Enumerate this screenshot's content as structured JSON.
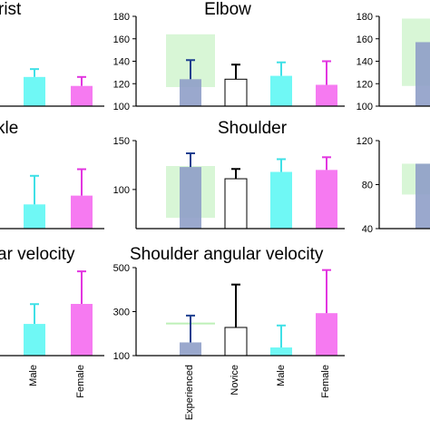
{
  "chart_data": [
    {
      "id": "wrist",
      "type": "bar",
      "title": "rist",
      "ylim": [
        100,
        180
      ],
      "yticks": [],
      "categories": [
        "Experienced",
        "Novice",
        "Male",
        "Female"
      ],
      "band": null,
      "bars": [
        {
          "category": "Male",
          "value": 126,
          "error": 7,
          "color": "#5ff7f4"
        },
        {
          "category": "Female",
          "value": 118,
          "error": 8,
          "color": "#f56cf0"
        }
      ]
    },
    {
      "id": "elbow",
      "type": "bar",
      "title": "Elbow",
      "ylim": [
        100,
        180
      ],
      "yticks": [
        "100",
        "120",
        "140",
        "160",
        "180"
      ],
      "categories": [
        "Experienced",
        "Novice",
        "Male",
        "Female"
      ],
      "band": {
        "from": 117,
        "to": 164,
        "color": "#d8f6d6"
      },
      "bars": [
        {
          "category": "Experienced",
          "value": 124,
          "error": 17,
          "color": "#8f9ec8"
        },
        {
          "category": "Novice",
          "value": 124,
          "error": 13,
          "color": "#ffffff"
        },
        {
          "category": "Male",
          "value": 127,
          "error": 12,
          "color": "#5ff7f4"
        },
        {
          "category": "Female",
          "value": 119,
          "error": 21,
          "color": "#f56cf0"
        }
      ]
    },
    {
      "id": "right-top",
      "type": "bar",
      "title": "",
      "ylim": [
        100,
        180
      ],
      "yticks": [
        "100",
        "120",
        "140",
        "160",
        "180"
      ],
      "categories": [
        "Experienced",
        "Novice",
        "Male",
        "Female"
      ],
      "band": {
        "from": 118,
        "to": 178,
        "color": "#d8f6d6"
      },
      "bars": [
        {
          "category": "Experienced",
          "value": 157,
          "error": 0,
          "color": "#8f9ec8"
        }
      ]
    },
    {
      "id": "ankle",
      "type": "bar",
      "title": "kle",
      "ylim": [
        60,
        140
      ],
      "yticks": [],
      "categories": [
        "Experienced",
        "Novice",
        "Male",
        "Female"
      ],
      "band": null,
      "bars": [
        {
          "category": "Male",
          "value": 82,
          "error": 26,
          "color": "#5ff7f4"
        },
        {
          "category": "Female",
          "value": 90,
          "error": 24,
          "color": "#f56cf0"
        }
      ]
    },
    {
      "id": "shoulder",
      "type": "bar",
      "title": "Shoulder",
      "ylim": [
        60,
        150
      ],
      "yticks": [
        "100",
        "150"
      ],
      "categories": [
        "Experienced",
        "Novice",
        "Male",
        "Female"
      ],
      "band": {
        "from": 71,
        "to": 124,
        "color": "#d8f6d6"
      },
      "bars": [
        {
          "category": "Experienced",
          "value": 123,
          "error": 14,
          "color": "#8f9ec8"
        },
        {
          "category": "Novice",
          "value": 111,
          "error": 10,
          "color": "#ffffff"
        },
        {
          "category": "Male",
          "value": 118,
          "error": 13,
          "color": "#5ff7f4"
        },
        {
          "category": "Female",
          "value": 120,
          "error": 13,
          "color": "#f56cf0"
        }
      ]
    },
    {
      "id": "right-mid",
      "type": "bar",
      "title": "",
      "ylim": [
        40,
        120
      ],
      "yticks": [
        "40",
        "80",
        "120"
      ],
      "categories": [
        "Experienced",
        "Novice",
        "Male",
        "Female"
      ],
      "band": {
        "from": 71,
        "to": 99,
        "color": "#d8f6d6"
      },
      "bars": [
        {
          "category": "Experienced",
          "value": 99,
          "error": 0,
          "color": "#8f9ec8"
        }
      ]
    },
    {
      "id": "ang-left",
      "type": "bar",
      "title": "ar velocity",
      "ylim": [
        100,
        500
      ],
      "yticks": [],
      "categories": [
        "Experienced",
        "Novice",
        "Male",
        "Female"
      ],
      "band": null,
      "bars": [
        {
          "category": "Male",
          "value": 244,
          "error": 90,
          "color": "#5ff7f4"
        },
        {
          "category": "Female",
          "value": 335,
          "error": 148,
          "color": "#f56cf0"
        }
      ]
    },
    {
      "id": "shoulder-ang",
      "type": "bar",
      "title": "Shoulder angular velocity",
      "ylim": [
        100,
        500
      ],
      "yticks": [
        "100",
        "300",
        "500"
      ],
      "categories": [
        "Experienced",
        "Novice",
        "Male",
        "Female"
      ],
      "band": {
        "from": 246,
        "to": 250,
        "color": "#bdf0b8"
      },
      "bars": [
        {
          "category": "Experienced",
          "value": 160,
          "error": 122,
          "color": "#8f9ec8"
        },
        {
          "category": "Novice",
          "value": 228,
          "error": 195,
          "color": "#ffffff"
        },
        {
          "category": "Male",
          "value": 137,
          "error": 100,
          "color": "#5ff7f4"
        },
        {
          "category": "Female",
          "value": 293,
          "error": 196,
          "color": "#f56cf0"
        }
      ]
    }
  ],
  "x_labels": {
    "left": [
      "Male",
      "Female"
    ],
    "middle": [
      "Experienced",
      "Novice",
      "Male",
      "Female"
    ]
  }
}
